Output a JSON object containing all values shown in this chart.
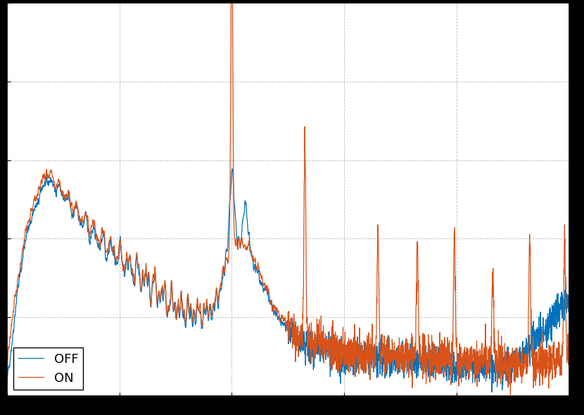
{
  "title": "",
  "xlabel": "",
  "ylabel": "",
  "color_off": "#0072BD",
  "color_on": "#D95319",
  "legend_labels": [
    "OFF",
    "ON"
  ],
  "background_color": "#ffffff",
  "figure_background": "#000000",
  "figsize": [
    8.3,
    5.9
  ],
  "dpi": 100,
  "xlim": [
    0,
    500
  ],
  "ylim": [
    0,
    1.0
  ],
  "xticks": [
    0,
    100,
    200,
    300,
    400,
    500
  ],
  "grid_style": "--",
  "grid_color": "#aaaaaa",
  "legend_loc": "lower left"
}
